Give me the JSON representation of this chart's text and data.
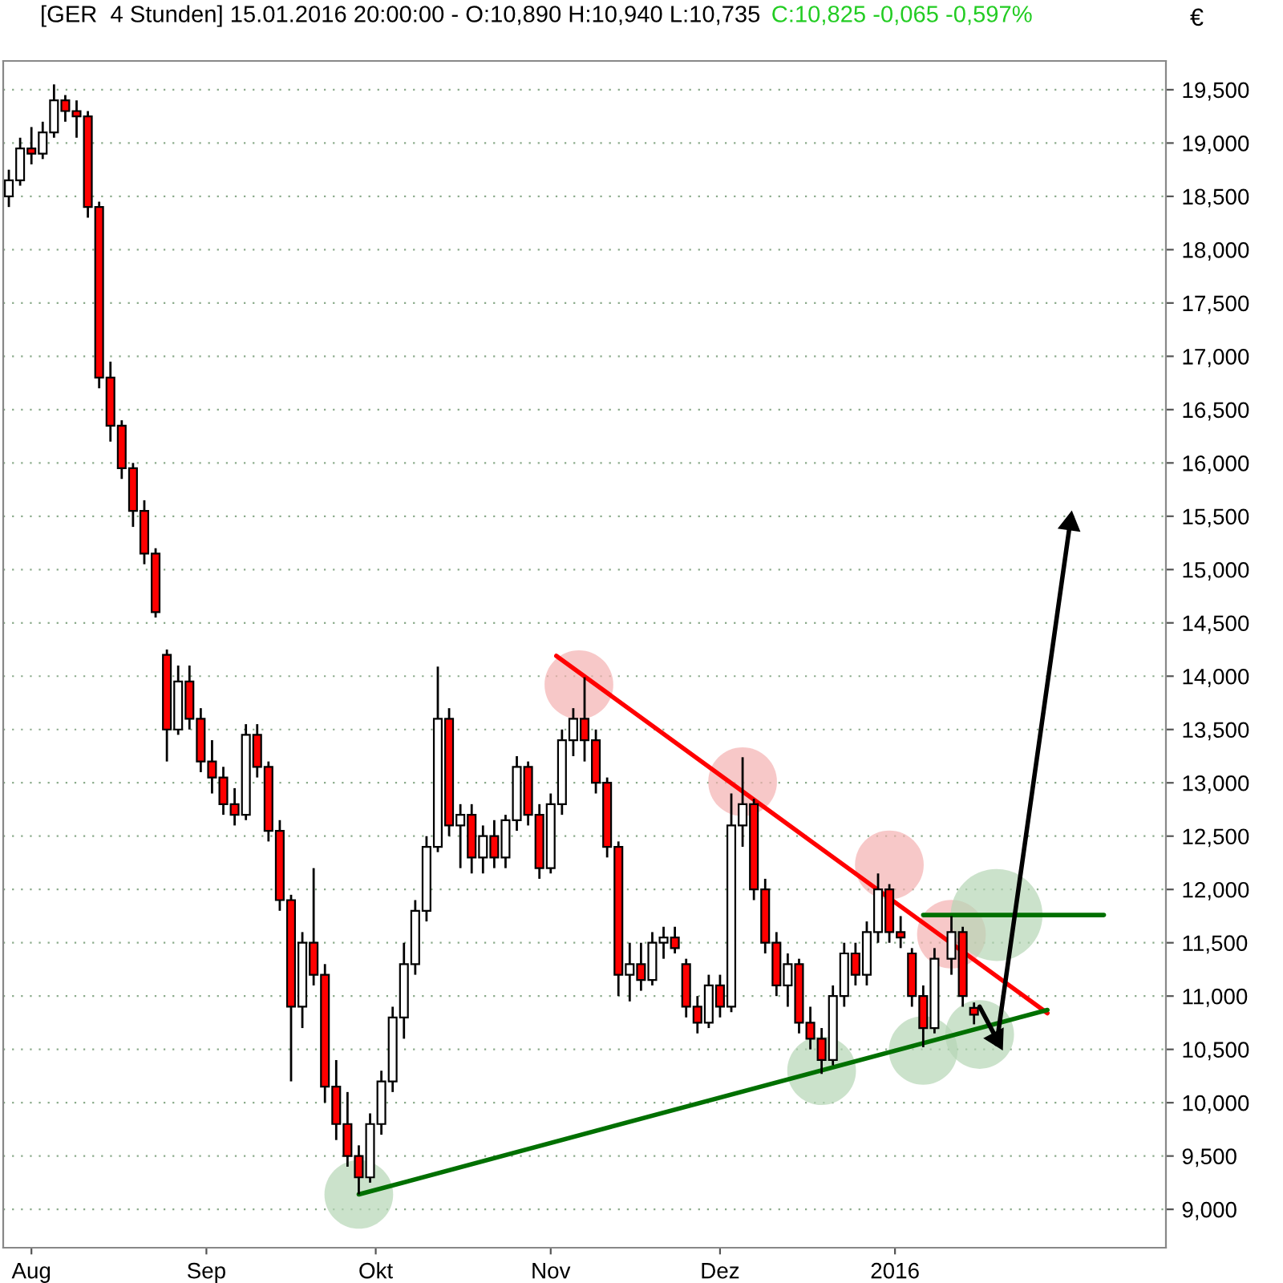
{
  "chart_data": {
    "type": "candlestick",
    "title": "[GER  4 Stunden] 15.01.2016 20:00:00 - O:10,890 H:10,940 L:10,735",
    "subtitle": "C:10,825 -0,065 -0,597%",
    "ylabel": "€",
    "x": [
      "2015-07-28",
      "2015-07-30",
      "2015-08-01",
      "2015-08-03",
      "2015-08-05",
      "2015-08-07",
      "2015-08-09",
      "2015-08-11",
      "2015-08-13",
      "2015-08-15",
      "2015-08-17",
      "2015-08-19",
      "2015-08-21",
      "2015-08-23",
      "2015-08-25",
      "2015-08-27",
      "2015-08-29",
      "2015-08-31",
      "2015-09-02",
      "2015-09-04",
      "2015-09-06",
      "2015-09-08",
      "2015-09-10",
      "2015-09-12",
      "2015-09-14",
      "2015-09-16",
      "2015-09-18",
      "2015-09-20",
      "2015-09-22",
      "2015-09-24",
      "2015-09-26",
      "2015-09-28",
      "2015-09-30",
      "2015-10-02",
      "2015-10-04",
      "2015-10-06",
      "2015-10-08",
      "2015-10-10",
      "2015-10-12",
      "2015-10-14",
      "2015-10-16",
      "2015-10-18",
      "2015-10-20",
      "2015-10-22",
      "2015-10-24",
      "2015-10-26",
      "2015-10-28",
      "2015-10-30",
      "2015-11-01",
      "2015-11-03",
      "2015-11-05",
      "2015-11-07",
      "2015-11-09",
      "2015-11-11",
      "2015-11-13",
      "2015-11-15",
      "2015-11-17",
      "2015-11-19",
      "2015-11-21",
      "2015-11-23",
      "2015-11-25",
      "2015-11-27",
      "2015-11-29",
      "2015-12-01",
      "2015-12-03",
      "2015-12-05",
      "2015-12-07",
      "2015-12-09",
      "2015-12-11",
      "2015-12-13",
      "2015-12-15",
      "2015-12-17",
      "2015-12-19",
      "2015-12-21",
      "2015-12-23",
      "2015-12-25",
      "2015-12-27",
      "2015-12-29",
      "2015-12-31",
      "2016-01-02",
      "2016-01-04",
      "2016-01-06",
      "2016-01-08",
      "2016-01-11",
      "2016-01-13",
      "2016-01-15"
    ],
    "ohlc": [
      [
        18500,
        18750,
        18400,
        18650
      ],
      [
        18650,
        19050,
        18600,
        18950
      ],
      [
        18950,
        19150,
        18800,
        18900
      ],
      [
        18900,
        19200,
        18850,
        19100
      ],
      [
        19100,
        19550,
        19050,
        19400
      ],
      [
        19400,
        19450,
        19200,
        19300
      ],
      [
        19300,
        19400,
        19050,
        19250
      ],
      [
        19250,
        19300,
        18300,
        18400
      ],
      [
        18400,
        18450,
        16700,
        16800
      ],
      [
        16800,
        16950,
        16200,
        16350
      ],
      [
        16350,
        16400,
        15850,
        15950
      ],
      [
        15950,
        16000,
        15400,
        15550
      ],
      [
        15550,
        15650,
        15050,
        15150
      ],
      [
        15150,
        15200,
        14550,
        14600
      ],
      [
        14200,
        14250,
        13200,
        13500
      ],
      [
        13500,
        14100,
        13450,
        13950
      ],
      [
        13950,
        14100,
        13500,
        13600
      ],
      [
        13600,
        13700,
        13100,
        13200
      ],
      [
        13200,
        13400,
        12900,
        13050
      ],
      [
        13050,
        13150,
        12700,
        12800
      ],
      [
        12800,
        12950,
        12600,
        12700
      ],
      [
        12700,
        13550,
        12650,
        13450
      ],
      [
        13450,
        13550,
        13050,
        13150
      ],
      [
        13150,
        13200,
        12450,
        12550
      ],
      [
        12550,
        12650,
        11800,
        11900
      ],
      [
        11900,
        11950,
        10200,
        10900
      ],
      [
        10900,
        11600,
        10700,
        11500
      ],
      [
        11500,
        12200,
        11100,
        11200
      ],
      [
        11200,
        11300,
        10000,
        10150
      ],
      [
        10150,
        10400,
        9650,
        9800
      ],
      [
        9800,
        10100,
        9400,
        9500
      ],
      [
        9500,
        9600,
        9140,
        9300
      ],
      [
        9300,
        9900,
        9250,
        9800
      ],
      [
        9800,
        10300,
        9700,
        10200
      ],
      [
        10200,
        10900,
        10100,
        10800
      ],
      [
        10800,
        11500,
        10600,
        11300
      ],
      [
        11300,
        11900,
        11200,
        11800
      ],
      [
        11800,
        12500,
        11700,
        12400
      ],
      [
        12400,
        14090,
        12350,
        13600
      ],
      [
        13600,
        13700,
        12500,
        12600
      ],
      [
        12600,
        12800,
        12200,
        12700
      ],
      [
        12700,
        12800,
        12150,
        12300
      ],
      [
        12300,
        12600,
        12150,
        12500
      ],
      [
        12500,
        12650,
        12200,
        12300
      ],
      [
        12300,
        12700,
        12200,
        12650
      ],
      [
        12650,
        13250,
        12550,
        13150
      ],
      [
        13150,
        13200,
        12600,
        12700
      ],
      [
        12700,
        12800,
        12100,
        12200
      ],
      [
        12200,
        12900,
        12150,
        12800
      ],
      [
        12800,
        13500,
        12700,
        13400
      ],
      [
        13400,
        13700,
        13250,
        13600
      ],
      [
        13600,
        13990,
        13200,
        13400
      ],
      [
        13400,
        13500,
        12900,
        13000
      ],
      [
        13000,
        13050,
        12300,
        12400
      ],
      [
        12400,
        12450,
        11000,
        11200
      ],
      [
        11200,
        11500,
        10950,
        11300
      ],
      [
        11300,
        11500,
        11050,
        11150
      ],
      [
        11150,
        11600,
        11100,
        11500
      ],
      [
        11500,
        11650,
        11350,
        11550
      ],
      [
        11550,
        11650,
        11400,
        11450
      ],
      [
        11300,
        11350,
        10800,
        10900
      ],
      [
        10900,
        11000,
        10650,
        10750
      ],
      [
        10750,
        11200,
        10700,
        11100
      ],
      [
        11100,
        11200,
        10800,
        10900
      ],
      [
        10900,
        12900,
        10850,
        12600
      ],
      [
        12600,
        13240,
        12400,
        12800
      ],
      [
        12800,
        12850,
        11900,
        12000
      ],
      [
        12000,
        12100,
        11400,
        11500
      ],
      [
        11500,
        11600,
        11000,
        11100
      ],
      [
        11100,
        11400,
        10900,
        11300
      ],
      [
        11300,
        11350,
        10650,
        10750
      ],
      [
        10750,
        10900,
        10500,
        10600
      ],
      [
        10600,
        10700,
        10270,
        10400
      ],
      [
        10400,
        11100,
        10350,
        11000
      ],
      [
        11000,
        11500,
        10900,
        11400
      ],
      [
        11400,
        11500,
        11100,
        11200
      ],
      [
        11200,
        11700,
        11100,
        11600
      ],
      [
        11600,
        12150,
        11500,
        12000
      ],
      [
        12000,
        12050,
        11500,
        11600
      ],
      [
        11600,
        11750,
        11450,
        11550
      ],
      [
        11400,
        11450,
        10900,
        11000
      ],
      [
        11000,
        11100,
        10520,
        10700
      ],
      [
        10700,
        11450,
        10650,
        11350
      ],
      [
        11350,
        11750,
        11200,
        11600
      ],
      [
        11600,
        11650,
        10900,
        11000
      ],
      [
        10890,
        10940,
        10735,
        10825
      ]
    ],
    "series": [
      {
        "type": "bubble",
        "color": "#f4b0b0",
        "x": [
          "2015-11-06",
          "2015-12-05",
          "2015-12-31",
          "2016-01-11"
        ],
        "values": [
          13920,
          13010,
          12230,
          11580
        ],
        "sizes": [
          0.56,
          0.56,
          0.56,
          0.56
        ]
      },
      {
        "type": "bubble",
        "color": "#b5d5b5",
        "x": [
          "2015-09-28",
          "2015-12-19",
          "2016-01-06",
          "2016-01-16",
          "2016-01-19"
        ],
        "values": [
          9140,
          10300,
          10490,
          10640,
          11760
        ],
        "sizes": [
          0.56,
          0.56,
          0.56,
          0.56,
          1
        ]
      },
      {
        "type": "line",
        "color": "#ff0000",
        "x": [
          "2015-11-02",
          "2016-01-28"
        ],
        "values": [
          14190,
          10840
        ]
      },
      {
        "type": "line",
        "color": "#007000",
        "x": [
          "2015-09-28",
          "2016-01-28"
        ],
        "values": [
          9140,
          10870
        ]
      },
      {
        "type": "line",
        "color": "#007000",
        "x": [
          "2016-01-06",
          "2016-02-07"
        ],
        "values": [
          11760,
          11760
        ]
      },
      {
        "type": "line",
        "color": "#000000",
        "x": [
          "2016-01-16",
          "2016-01-19"
        ],
        "values": [
          10900,
          10600
        ],
        "marker": "triangle"
      },
      {
        "type": "line",
        "color": "#000000",
        "x": [
          "2016-01-19",
          "2016-02-01"
        ],
        "values": [
          10550,
          15430
        ],
        "marker": "triangle"
      }
    ],
    "xlim": [
      "2015-07-27",
      "2016-02-18"
    ],
    "xticks": [
      {
        "value": "2015-08-01",
        "label": "Aug"
      },
      {
        "value": "2015-09-01",
        "label": "Sep"
      },
      {
        "value": "2015-10-01",
        "label": "Okt"
      },
      {
        "value": "2015-11-01",
        "label": "Nov"
      },
      {
        "value": "2015-12-01",
        "label": "Dez"
      },
      {
        "value": "2016-01-01",
        "label": "2016"
      }
    ],
    "ylim": [
      8640,
      19770
    ],
    "yticks": [
      {
        "value": 9000,
        "label": "9,000"
      },
      {
        "value": 9500,
        "label": "9,500"
      },
      {
        "value": 10000,
        "label": "10,000"
      },
      {
        "value": 10500,
        "label": "10,500"
      },
      {
        "value": 11000,
        "label": "11,000"
      },
      {
        "value": 11500,
        "label": "11,500"
      },
      {
        "value": 12000,
        "label": "12,000"
      },
      {
        "value": 12500,
        "label": "12,500"
      },
      {
        "value": 13000,
        "label": "13,000"
      },
      {
        "value": 13500,
        "label": "13,500"
      },
      {
        "value": 14000,
        "label": "14,000"
      },
      {
        "value": 14500,
        "label": "14,500"
      },
      {
        "value": 15000,
        "label": "15,000"
      },
      {
        "value": 15500,
        "label": "15,500"
      },
      {
        "value": 16000,
        "label": "16,000"
      },
      {
        "value": 16500,
        "label": "16,500"
      },
      {
        "value": 17000,
        "label": "17,000"
      },
      {
        "value": 17500,
        "label": "17,500"
      },
      {
        "value": 18000,
        "label": "18,000"
      },
      {
        "value": 18500,
        "label": "18,500"
      },
      {
        "value": 19000,
        "label": "19,000"
      },
      {
        "value": 19500,
        "label": "19,500"
      }
    ],
    "grid": "y",
    "legend": false
  }
}
